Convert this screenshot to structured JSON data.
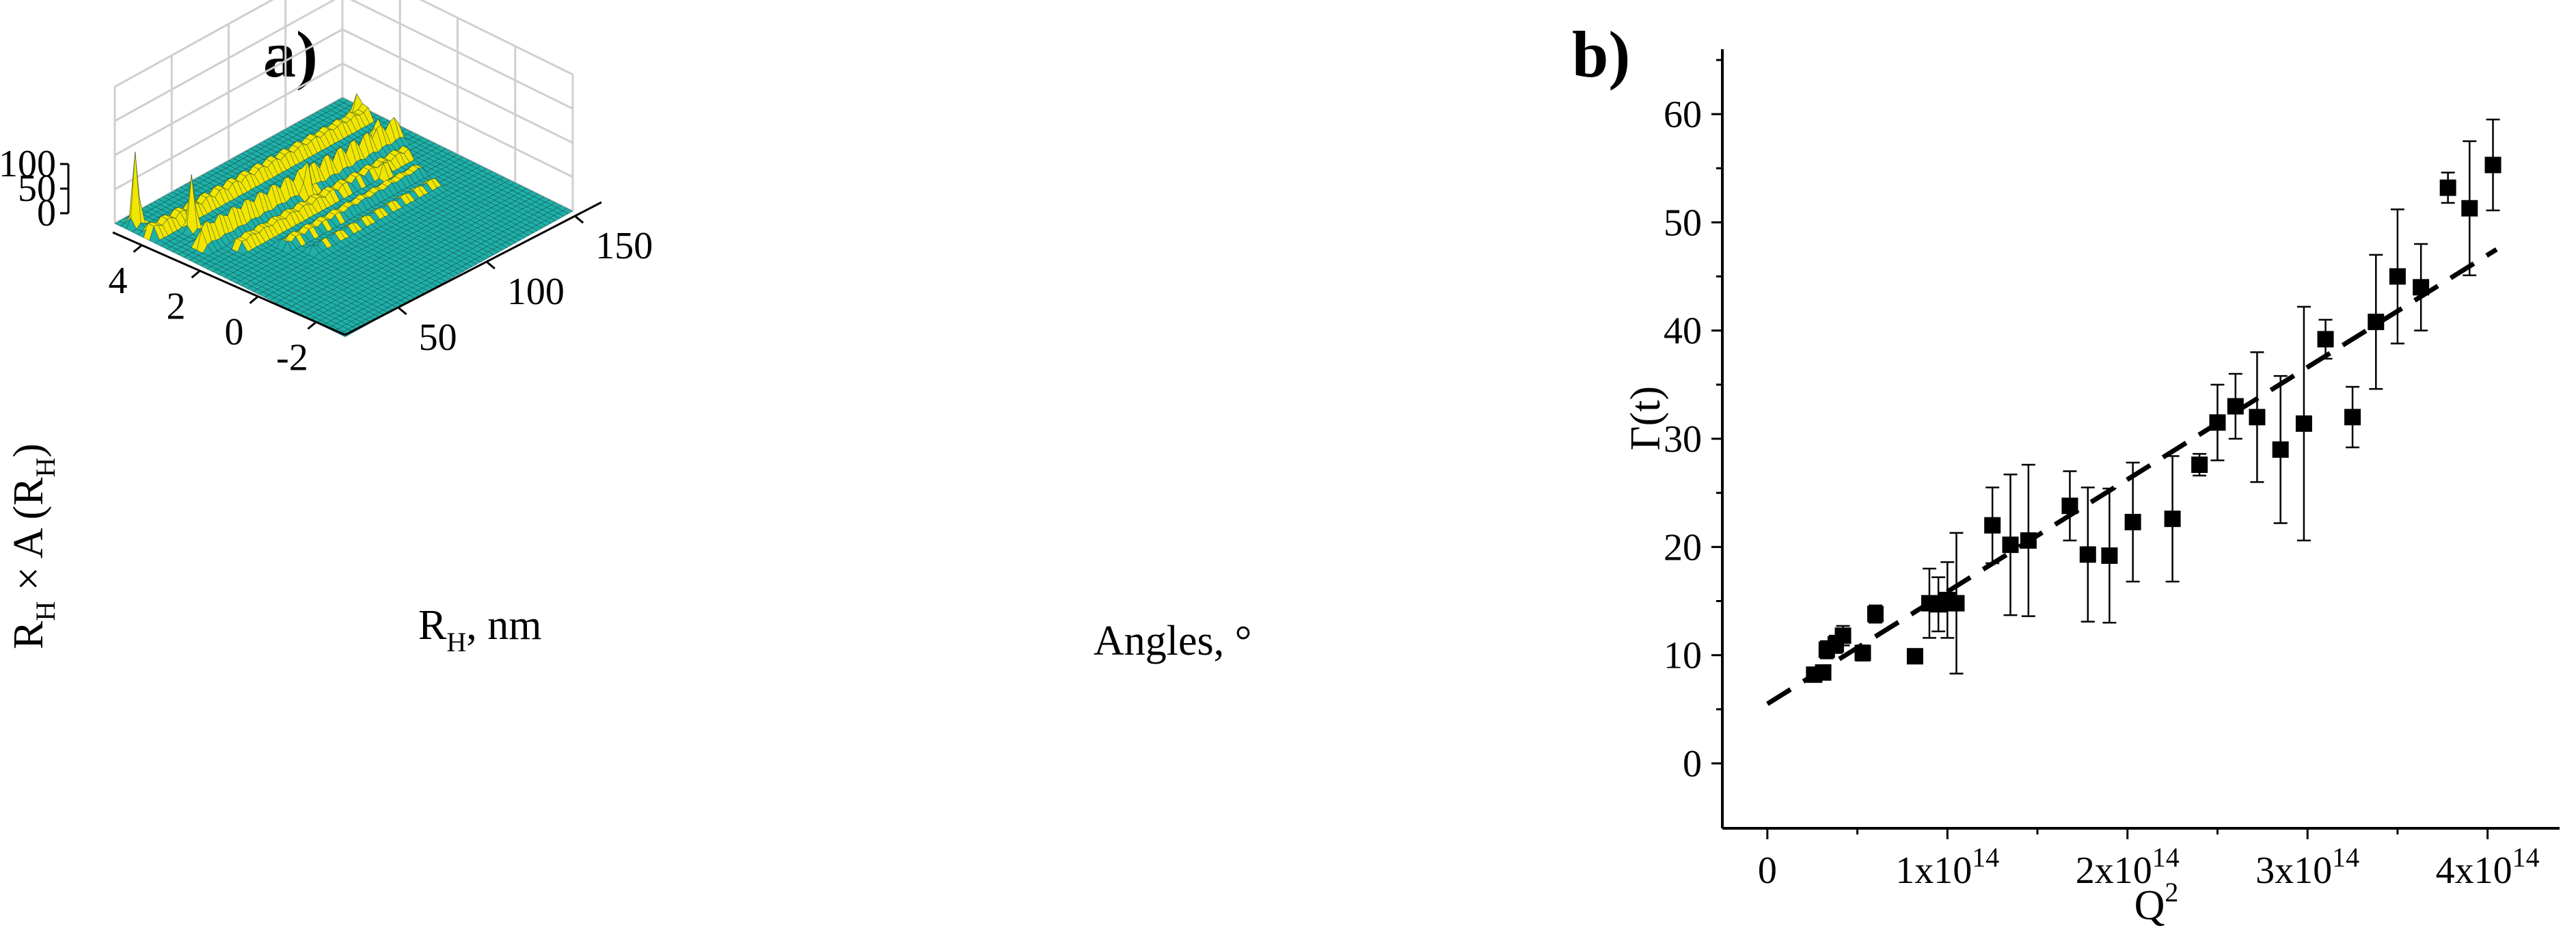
{
  "chart_data": [
    {
      "id": "a",
      "panel_label": "a)",
      "type": "surface",
      "zlabel": "R",
      "zlabel_sub": "H",
      "zlabel_mid": " × A (R",
      "zlabel_end": ")",
      "xlabel": "R",
      "xlabel_sub": "H",
      "xlabel_end": ", nm",
      "ylabel": "Angles, °",
      "x_ticks": [
        "4",
        "2",
        "0",
        "-2"
      ],
      "x_tick_values": [
        4,
        2,
        0,
        -2
      ],
      "xlim": [
        -3,
        5
      ],
      "y_ticks": [
        "50",
        "100",
        "150"
      ],
      "y_tick_values": [
        50,
        100,
        150
      ],
      "ylim": [
        20,
        165
      ],
      "z_ticks": [
        "0",
        "50",
        "100"
      ],
      "z_tick_values": [
        0,
        50,
        100
      ],
      "zlim": [
        0,
        100
      ],
      "surface_color": "#1fb0a8",
      "peak_color": "#f2e600",
      "ridges": [
        {
          "r": 3.9,
          "a_from": 22,
          "a_to": 160,
          "h": 12
        },
        {
          "r": 2.6,
          "a_from": 30,
          "a_to": 158,
          "h": 18
        },
        {
          "r": 1.9,
          "a_from": 40,
          "a_to": 150,
          "h": 10
        },
        {
          "r": 1.1,
          "a_from": 55,
          "a_to": 145,
          "h": 8
        },
        {
          "r": 0.4,
          "a_from": 60,
          "a_to": 140,
          "h": 6
        }
      ],
      "peaks": [
        {
          "r": 4.6,
          "a": 26,
          "h": 55
        },
        {
          "r": 3.4,
          "a": 40,
          "h": 42
        },
        {
          "r": 2.4,
          "a": 95,
          "h": 20
        },
        {
          "r": 3.0,
          "a": 150,
          "h": 18
        },
        {
          "r": 4.2,
          "a": 160,
          "h": 15
        },
        {
          "r": 1.6,
          "a": 130,
          "h": 14
        }
      ]
    },
    {
      "id": "b",
      "panel_label": "b)",
      "type": "scatter",
      "xlabel": "Q",
      "xlabel_sup": "2",
      "ylabel": "Γ(t)",
      "xlim": [
        -25000000000000.0,
        440000000000000.0
      ],
      "ylim": [
        -6,
        66
      ],
      "x_tick_values": [
        0,
        100000000000000.0,
        200000000000000.0,
        300000000000000.0,
        400000000000000.0
      ],
      "x_ticks": [
        {
          "base": "0",
          "exp": ""
        },
        {
          "base": "1x10",
          "exp": "14"
        },
        {
          "base": "2x10",
          "exp": "14"
        },
        {
          "base": "3x10",
          "exp": "14"
        },
        {
          "base": "4x10",
          "exp": "14"
        }
      ],
      "y_tick_values": [
        0,
        10,
        20,
        30,
        40,
        50,
        60
      ],
      "y_ticks": [
        "0",
        "10",
        "20",
        "30",
        "40",
        "50",
        "60"
      ],
      "fit": {
        "x": [
          0,
          405000000000000.0
        ],
        "y": [
          5.5,
          47.5
        ],
        "style": "dashed"
      },
      "points": [
        {
          "x": 26000000000000.0,
          "y": 8.2,
          "err": 0.6
        },
        {
          "x": 31000000000000.0,
          "y": 8.4,
          "err": 0.5
        },
        {
          "x": 33000000000000.0,
          "y": 10.5,
          "err": 0.8
        },
        {
          "x": 38000000000000.0,
          "y": 11.0,
          "err": 0.8
        },
        {
          "x": 42000000000000.0,
          "y": 11.8,
          "err": 0.9
        },
        {
          "x": 53000000000000.0,
          "y": 10.2,
          "err": 0.7
        },
        {
          "x": 60000000000000.0,
          "y": 13.8,
          "err": 0.8
        },
        {
          "x": 82000000000000.0,
          "y": 9.9,
          "err": 0.6
        },
        {
          "x": 90000000000000.0,
          "y": 14.8,
          "err": 3.2
        },
        {
          "x": 95000000000000.0,
          "y": 14.7,
          "err": 2.5
        },
        {
          "x": 100000000000000.0,
          "y": 15.1,
          "err": 3.5
        },
        {
          "x": 105000000000000.0,
          "y": 14.8,
          "err": 6.5
        },
        {
          "x": 125000000000000.0,
          "y": 22.0,
          "err": 3.5
        },
        {
          "x": 135000000000000.0,
          "y": 20.2,
          "err": 6.5
        },
        {
          "x": 145000000000000.0,
          "y": 20.6,
          "err": 7.0
        },
        {
          "x": 168000000000000.0,
          "y": 23.8,
          "err": 3.2
        },
        {
          "x": 178000000000000.0,
          "y": 19.3,
          "err": 6.2
        },
        {
          "x": 190000000000000.0,
          "y": 19.2,
          "err": 6.2
        },
        {
          "x": 203000000000000.0,
          "y": 22.3,
          "err": 5.5
        },
        {
          "x": 225000000000000.0,
          "y": 22.6,
          "err": 5.8
        },
        {
          "x": 240000000000000.0,
          "y": 27.6,
          "err": 1.0
        },
        {
          "x": 250000000000000.0,
          "y": 31.5,
          "err": 3.5
        },
        {
          "x": 260000000000000.0,
          "y": 33.0,
          "err": 3.0
        },
        {
          "x": 272000000000000.0,
          "y": 32.0,
          "err": 6.0
        },
        {
          "x": 285000000000000.0,
          "y": 29.0,
          "err": 6.8
        },
        {
          "x": 298000000000000.0,
          "y": 31.4,
          "err": 10.8
        },
        {
          "x": 310000000000000.0,
          "y": 39.2,
          "err": 1.8
        },
        {
          "x": 325000000000000.0,
          "y": 32.0,
          "err": 2.8
        },
        {
          "x": 338000000000000.0,
          "y": 40.8,
          "err": 6.2
        },
        {
          "x": 350000000000000.0,
          "y": 45.0,
          "err": 6.2
        },
        {
          "x": 363000000000000.0,
          "y": 44.0,
          "err": 4.0
        },
        {
          "x": 378000000000000.0,
          "y": 53.2,
          "err": 1.4
        },
        {
          "x": 390000000000000.0,
          "y": 51.3,
          "err": 6.2
        },
        {
          "x": 403000000000000.0,
          "y": 55.3,
          "err": 4.2
        }
      ]
    }
  ]
}
